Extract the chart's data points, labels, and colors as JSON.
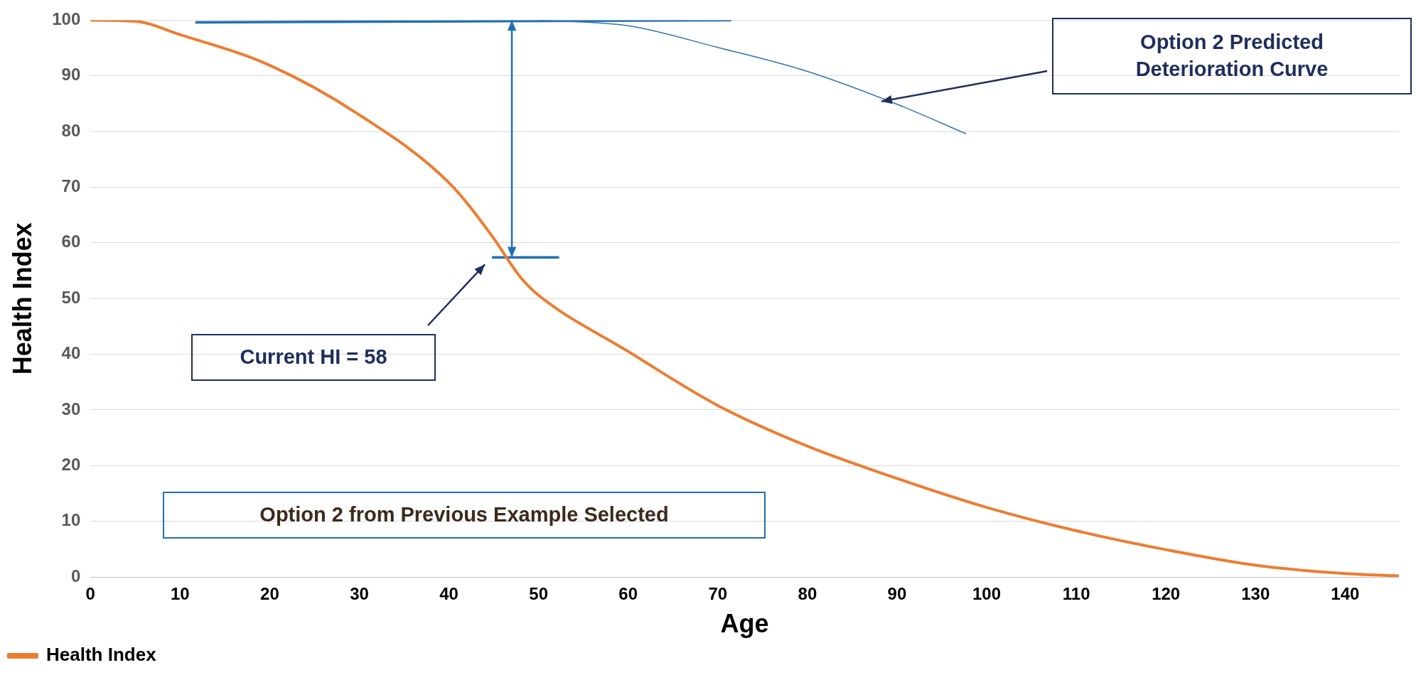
{
  "chart_data": {
    "type": "line",
    "xlabel": "Age",
    "ylabel": "Health Index",
    "xlim": [
      0,
      146
    ],
    "ylim": [
      0,
      100
    ],
    "xticks": [
      0,
      10,
      20,
      30,
      40,
      50,
      60,
      70,
      80,
      90,
      100,
      110,
      120,
      130,
      140
    ],
    "yticks": [
      0,
      10,
      20,
      30,
      40,
      50,
      60,
      70,
      80,
      90,
      100
    ],
    "grid": "y",
    "legend": "bottom left",
    "marker": "none",
    "line_style": "solid",
    "series": [
      {
        "name": "Health Index",
        "color": "#ed7d31",
        "x": [
          0,
          5,
          10,
          20,
          30,
          40,
          45,
          47,
          48,
          50,
          60,
          70,
          80,
          90,
          100,
          110,
          120,
          130,
          140,
          146
        ],
        "values": [
          100,
          99.8,
          97.4,
          91.9,
          83,
          70.8,
          60.8,
          56,
          53.8,
          50.6,
          40.5,
          30.8,
          23.5,
          17.7,
          12.5,
          8.3,
          4.9,
          2.1,
          0.6,
          0.2
        ]
      },
      {
        "color": "#2e75b6",
        "x": [
          50,
          60,
          70,
          80,
          90,
          97.7
        ],
        "values": [
          100,
          99,
          95.1,
          90.8,
          84.9,
          79.6
        ]
      },
      {
        "color": "#1f6fb5",
        "x": [
          11.7,
          71.5
        ],
        "values": [
          99.6,
          100
        ]
      },
      {
        "color": "#1f6fb5",
        "x": [
          44.8,
          52.3
        ],
        "values": [
          57.4,
          57.4
        ]
      }
    ],
    "annotations": [
      "Option 2 Predicted Deterioration Curve",
      "Current HI = 58",
      "Option 2 from Previous Example Selected"
    ]
  }
}
